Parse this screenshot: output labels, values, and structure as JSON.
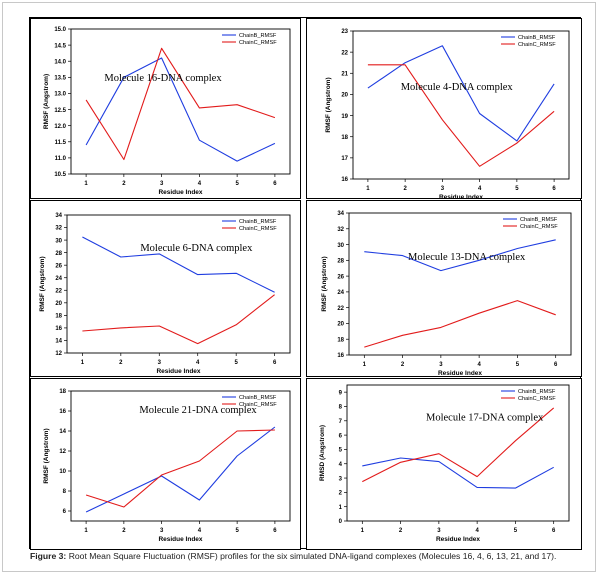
{
  "caption": {
    "label": "Figure 3:",
    "text": "Root Mean Square Fluctuation (RMSF) profiles for the six simulated DNA-ligand complexes (Molecules 16, 4, 6, 13, 21, and 17)."
  },
  "colors": {
    "chainB": "#1f3de0",
    "chainC": "#e21b1b"
  },
  "chart_data": [
    {
      "type": "line",
      "annotation": "Molecule 16-DNA complex",
      "xlabel": "Residue Index",
      "ylabel": "RMSF (Angstrom)",
      "x": [
        1,
        2,
        3,
        4,
        5,
        6
      ],
      "xlim": [
        0.6,
        6.4
      ],
      "ylim": [
        10.5,
        15.0
      ],
      "yticks": [
        "10.5",
        "11.0",
        "11.5",
        "12.0",
        "12.5",
        "13.0",
        "13.5",
        "14.0",
        "14.5",
        "15.0"
      ],
      "series": [
        {
          "name": "ChainB_RMSF",
          "values": [
            11.4,
            13.5,
            14.1,
            11.55,
            10.9,
            11.45
          ]
        },
        {
          "name": "ChainC_RMSF",
          "values": [
            12.8,
            10.95,
            14.4,
            12.55,
            12.65,
            12.25
          ]
        }
      ]
    },
    {
      "type": "line",
      "annotation": "Molecule 4-DNA complex",
      "xlabel": "Residue Index",
      "ylabel": "RMSF (Angstrom)",
      "x": [
        1,
        2,
        3,
        4,
        5,
        6
      ],
      "xlim": [
        0.6,
        6.4
      ],
      "ylim": [
        16,
        23
      ],
      "yticks": [
        "16",
        "17",
        "18",
        "19",
        "20",
        "21",
        "22",
        "23"
      ],
      "series": [
        {
          "name": "ChainB_RMSF",
          "values": [
            20.3,
            21.5,
            22.3,
            19.1,
            17.8,
            20.5
          ]
        },
        {
          "name": "ChainC_RMSF",
          "values": [
            21.4,
            21.4,
            18.8,
            16.6,
            17.7,
            19.2
          ]
        }
      ]
    },
    {
      "type": "line",
      "annotation": "Molecule 6-DNA complex",
      "xlabel": "Residue Index",
      "ylabel": "RMSF (Angstrom)",
      "x": [
        1,
        2,
        3,
        4,
        5,
        6
      ],
      "xlim": [
        0.6,
        6.4
      ],
      "ylim": [
        12,
        34
      ],
      "yticks": [
        "12",
        "14",
        "16",
        "18",
        "20",
        "22",
        "24",
        "26",
        "28",
        "30",
        "32",
        "34"
      ],
      "series": [
        {
          "name": "ChainB_RMSF",
          "values": [
            30.5,
            27.3,
            27.8,
            24.5,
            24.7,
            21.7
          ]
        },
        {
          "name": "ChainC_RMSF",
          "values": [
            15.5,
            16.0,
            16.3,
            13.5,
            16.5,
            21.3
          ]
        }
      ]
    },
    {
      "type": "line",
      "annotation": "Molecule 13-DNA complex",
      "xlabel": "Residue Index",
      "ylabel": "RMSF (Angstrom)",
      "x": [
        1,
        2,
        3,
        4,
        5,
        6
      ],
      "xlim": [
        0.6,
        6.4
      ],
      "ylim": [
        16,
        34
      ],
      "yticks": [
        "16",
        "18",
        "20",
        "22",
        "24",
        "26",
        "28",
        "30",
        "32",
        "34"
      ],
      "series": [
        {
          "name": "ChainB_RMSF",
          "values": [
            29.1,
            28.6,
            26.7,
            28.0,
            29.5,
            30.6
          ]
        },
        {
          "name": "ChainC_RMSF",
          "values": [
            17.0,
            18.5,
            19.5,
            21.3,
            22.9,
            21.1
          ]
        }
      ]
    },
    {
      "type": "line",
      "annotation": "Molecule 21-DNA complex",
      "xlabel": "Residue Index",
      "ylabel": "RMSF (Angstrom)",
      "x": [
        1,
        2,
        3,
        4,
        5,
        6
      ],
      "xlim": [
        0.6,
        6.4
      ],
      "ylim": [
        5,
        18
      ],
      "yticks": [
        "6",
        "8",
        "10",
        "12",
        "14",
        "16",
        "18"
      ],
      "series": [
        {
          "name": "ChainB_RMSF",
          "values": [
            5.9,
            7.7,
            9.5,
            7.1,
            11.5,
            14.4
          ]
        },
        {
          "name": "ChainC_RMSF",
          "values": [
            7.6,
            6.4,
            9.6,
            11.0,
            14.0,
            14.1
          ]
        }
      ]
    },
    {
      "type": "line",
      "annotation": "Molecule 17-DNA complex",
      "xlabel": "Residue Index",
      "ylabel": "RMSD (Angstrom)",
      "x": [
        1,
        2,
        3,
        4,
        5,
        6
      ],
      "xlim": [
        0.6,
        6.4
      ],
      "ylim": [
        0,
        9.5
      ],
      "yticks": [
        "0",
        "1",
        "2",
        "3",
        "4",
        "5",
        "6",
        "7",
        "8",
        "9"
      ],
      "series": [
        {
          "name": "ChainB_RMSF",
          "values": [
            3.85,
            4.4,
            4.15,
            2.35,
            2.3,
            3.75
          ]
        },
        {
          "name": "ChainC_RMSF",
          "values": [
            2.75,
            4.1,
            4.7,
            3.1,
            5.6,
            7.9
          ]
        }
      ]
    }
  ]
}
